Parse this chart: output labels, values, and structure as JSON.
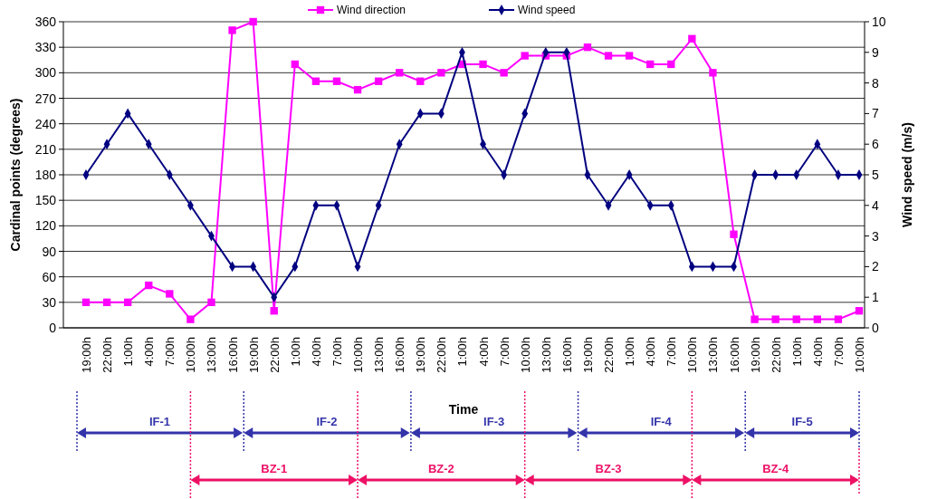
{
  "chart_data": {
    "type": "line",
    "xlabel": "Time",
    "ylabel": "Cardinal points (degrees)",
    "y2label": "Wind speed (m/s)",
    "categories": [
      "19:00h",
      "22:00h",
      "1:00h",
      "4:00h",
      "7:00h",
      "10:00h",
      "13:00h",
      "16:00h",
      "19:00h",
      "22:00h",
      "1:00h",
      "4:00h",
      "7:00h",
      "10:00h",
      "13:00h",
      "16:00h",
      "19:00h",
      "22:00h",
      "1:00h",
      "4:00h",
      "7:00h",
      "10:00h",
      "13:00h",
      "16:00h",
      "19:00h",
      "22:00h",
      "1:00h",
      "4:00h",
      "7:00h",
      "10:00h",
      "13:00h",
      "16:00h",
      "19:00h",
      "22:00h",
      "1:00h",
      "4:00h",
      "7:00h",
      "10:00h"
    ],
    "series": [
      {
        "name": "Wind direction",
        "color": "#ff00ff",
        "marker": "square",
        "values": [
          30,
          30,
          30,
          50,
          40,
          10,
          30,
          350,
          360,
          20,
          310,
          290,
          290,
          280,
          290,
          300,
          290,
          300,
          310,
          310,
          300,
          320,
          320,
          320,
          330,
          320,
          320,
          310,
          310,
          340,
          300,
          110,
          10,
          10,
          10,
          10,
          10,
          20
        ]
      },
      {
        "name": "Wind speed",
        "color": "#000080",
        "marker": "diamond",
        "axis": "y2",
        "values": [
          5,
          6,
          7,
          6,
          5,
          4,
          3,
          2,
          2,
          1,
          2,
          4,
          4,
          2,
          4,
          6,
          7,
          7,
          9,
          6,
          5,
          7,
          9,
          9,
          5,
          4,
          5,
          4,
          4,
          2,
          2,
          2,
          5,
          5,
          5,
          6,
          5,
          5
        ]
      }
    ],
    "ylim": [
      0,
      360
    ],
    "yticks": [
      0,
      30,
      60,
      90,
      120,
      150,
      180,
      210,
      240,
      270,
      300,
      330,
      360
    ],
    "y2lim": [
      0,
      10
    ],
    "y2ticks": [
      0,
      1,
      2,
      3,
      4,
      5,
      6,
      7,
      8,
      9,
      10
    ],
    "grid": "y",
    "legend": "top",
    "annotations": [
      "IF-1",
      "IF-2",
      "IF-3",
      "IF-4",
      "IF-5",
      "BZ-1",
      "BZ-2",
      "BZ-3",
      "BZ-4"
    ]
  }
}
